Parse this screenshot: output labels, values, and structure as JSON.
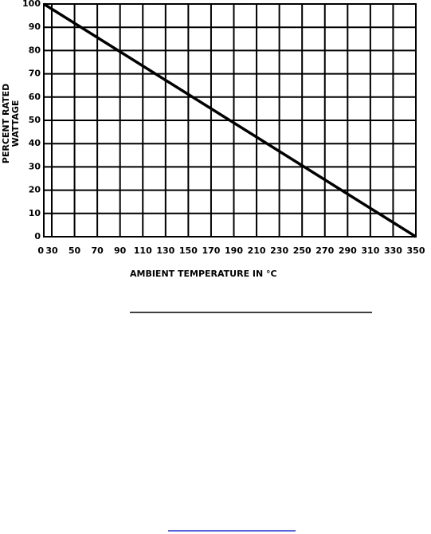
{
  "chart_data": {
    "type": "line",
    "y_label": [
      "PERCENT RATED",
      "WATTAGE"
    ],
    "x_label": "AMBIENT TEMPERATURE IN °C",
    "x": [
      0,
      350
    ],
    "series": [
      {
        "color": "#000000",
        "values": [
          100,
          0
        ]
      }
    ],
    "xlim": [
      0,
      350
    ],
    "xticks": [
      0,
      30,
      50,
      70,
      90,
      110,
      130,
      150,
      170,
      190,
      210,
      230,
      250,
      270,
      290,
      310,
      330,
      350
    ],
    "ylim": [
      0,
      100
    ],
    "yticks": [
      0,
      10,
      20,
      30,
      40,
      50,
      60,
      70,
      80,
      90,
      100
    ],
    "grid": true
  }
}
